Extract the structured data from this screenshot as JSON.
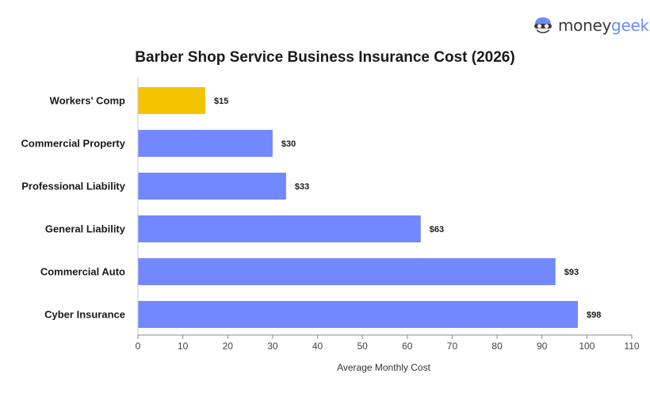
{
  "brand": {
    "name_part_a": "money",
    "name_part_b": "geek",
    "icon": "moneygeek-mascot-icon"
  },
  "colors": {
    "highlight": "#f5c400",
    "bar": "#7188ff",
    "logo_accent": "#6d8bff"
  },
  "chart_data": {
    "type": "bar",
    "orientation": "horizontal",
    "title": "Barber Shop Service Business Insurance Cost (2026)",
    "xlabel": "Average Monthly Cost",
    "ylabel": "",
    "categories": [
      "Workers' Comp",
      "Commercial Property",
      "Professional Liability",
      "General Liability",
      "Commercial Auto",
      "Cyber Insurance"
    ],
    "values": [
      15,
      30,
      33,
      63,
      93,
      98
    ],
    "value_labels": [
      "$15",
      "$30",
      "$33",
      "$63",
      "$93",
      "$98"
    ],
    "highlighted_category": "Workers' Comp",
    "xlim": [
      0,
      110
    ],
    "xticks": [
      0,
      10,
      20,
      30,
      40,
      50,
      60,
      70,
      80,
      90,
      100,
      110
    ],
    "grid": false,
    "legend": "none"
  }
}
